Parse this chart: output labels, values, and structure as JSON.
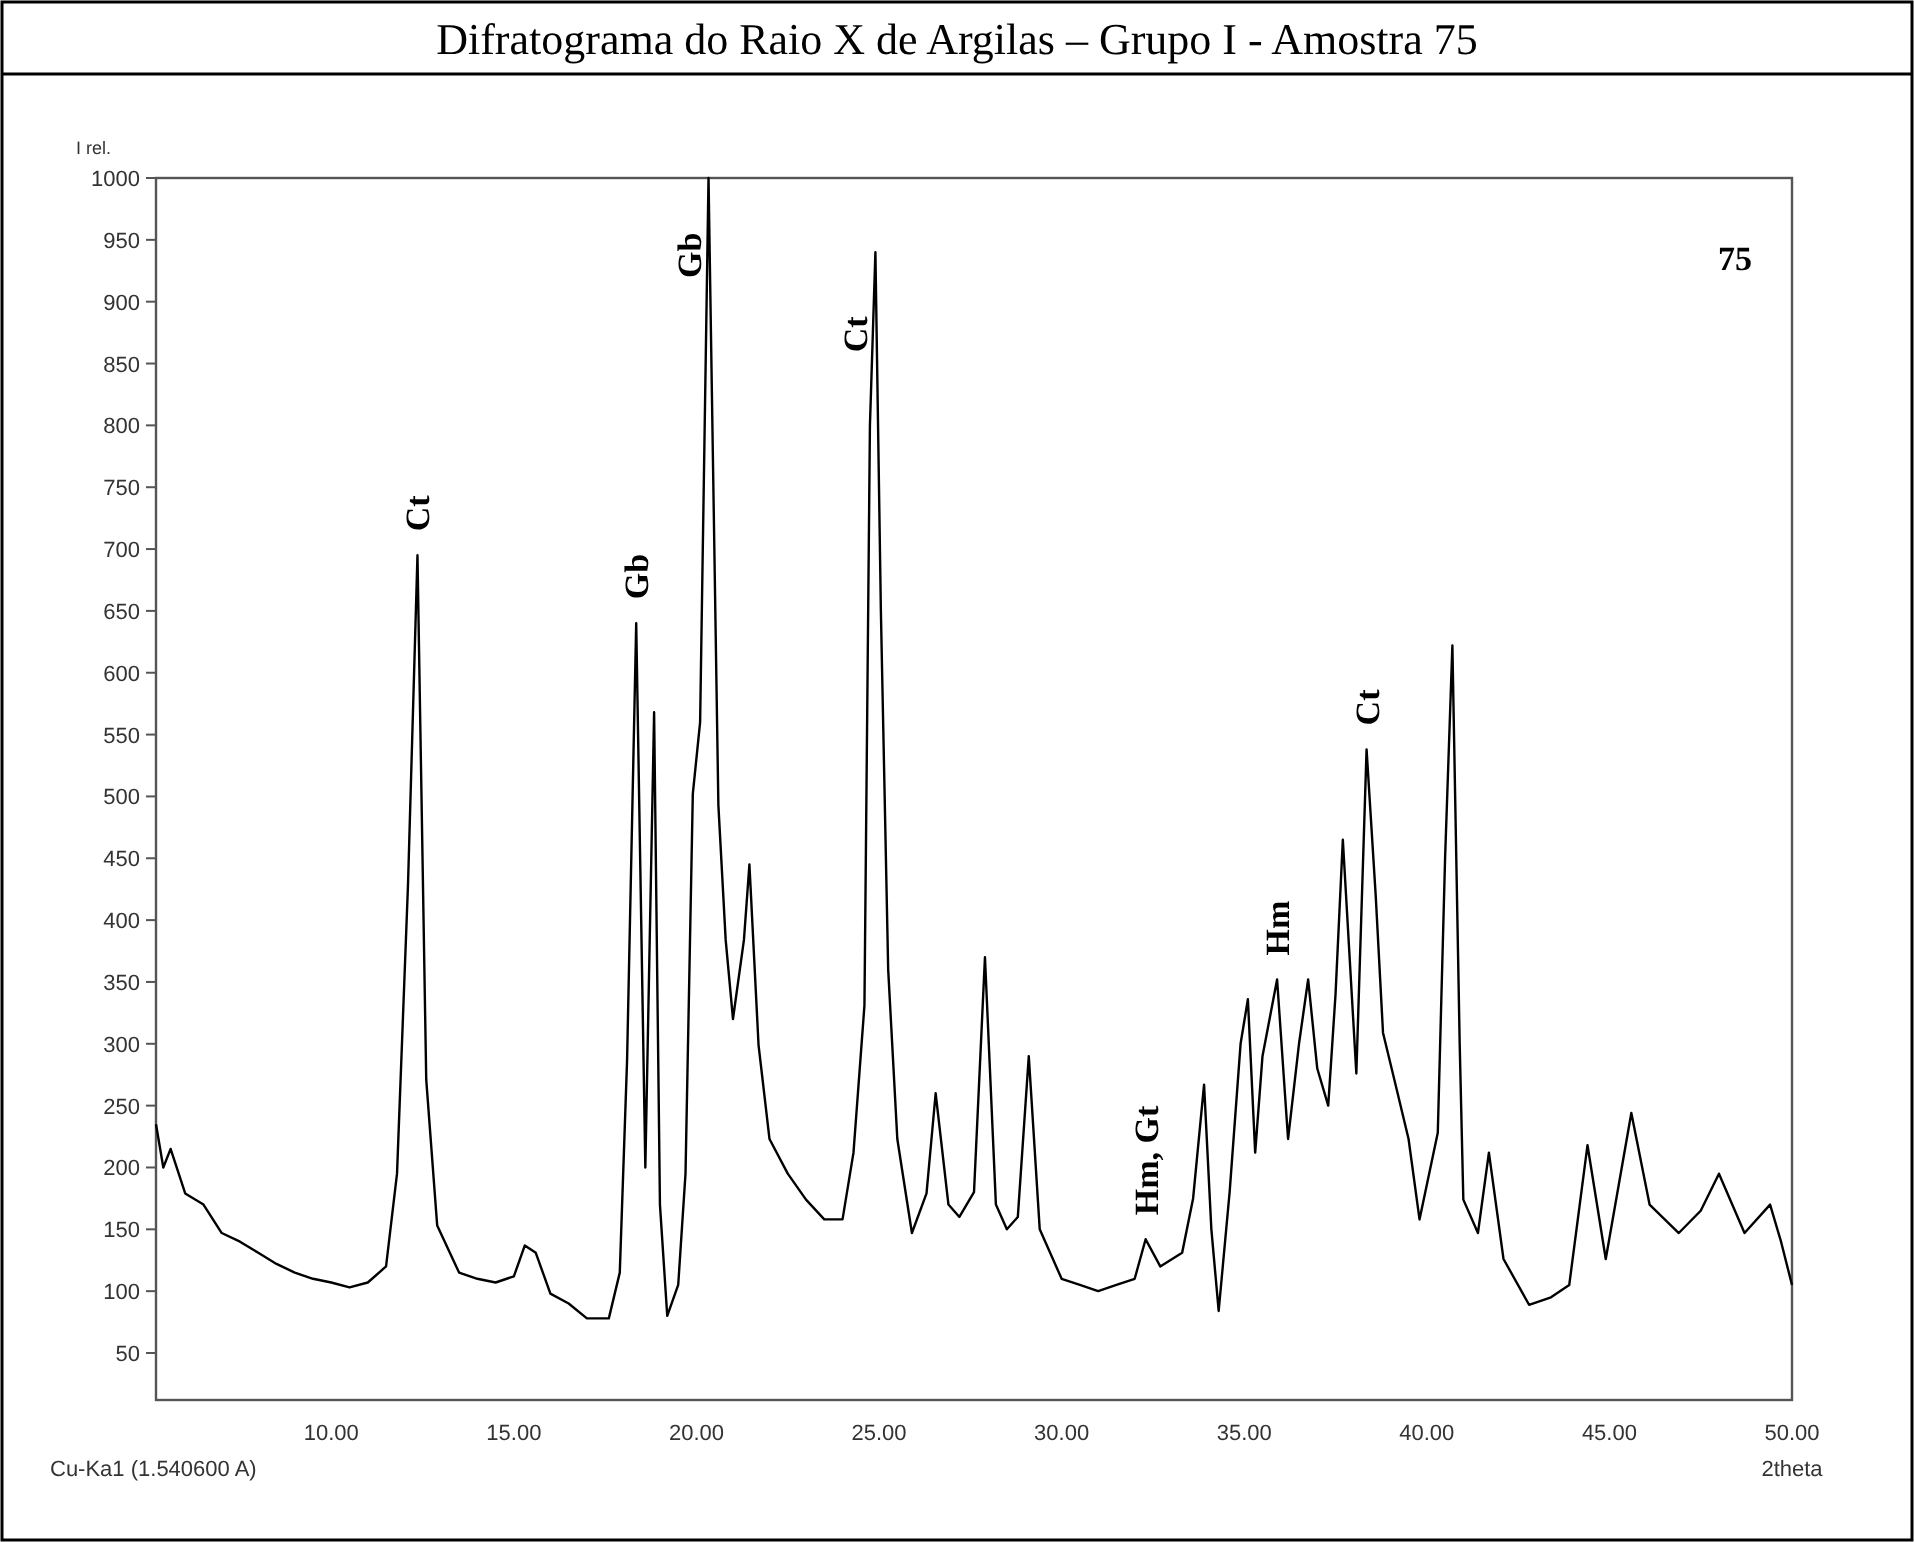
{
  "chart_data": {
    "type": "line",
    "title": "Difratograma do Raio X de Argilas – Grupo I - Amostra 75",
    "ylabel": "I rel.",
    "xlabel": "2theta",
    "grid": false,
    "marker": "none",
    "line_style": "solid",
    "xlim": [
      5.2,
      50
    ],
    "ylim": [
      12,
      1000
    ],
    "xticks": [
      {
        "value": 10,
        "label": "10.00"
      },
      {
        "value": 15,
        "label": "15.00"
      },
      {
        "value": 20,
        "label": "20.00"
      },
      {
        "value": 25,
        "label": "25.00"
      },
      {
        "value": 30,
        "label": "30.00"
      },
      {
        "value": 35,
        "label": "35.00"
      },
      {
        "value": 40,
        "label": "40.00"
      },
      {
        "value": 45,
        "label": "45.00"
      },
      {
        "value": 50,
        "label": "50.00"
      }
    ],
    "yticks": [
      50,
      100,
      150,
      200,
      250,
      300,
      350,
      400,
      450,
      500,
      550,
      600,
      650,
      700,
      750,
      800,
      850,
      900,
      950,
      1000
    ],
    "annotations": [
      "Cu-Ka1 (1.540600 A)",
      "75",
      {
        "text": "Ct",
        "x": 12.36,
        "y": 695
      },
      {
        "text": "Gb",
        "x": 18.35,
        "y": 640
      },
      {
        "text": "Gb",
        "x": 20.33,
        "y": 1000
      },
      {
        "text": "Ct",
        "x": 24.9,
        "y": 940
      },
      {
        "text": "Hm, Gt",
        "x": 32.3,
        "y": 142
      },
      {
        "text": "Hm",
        "x": 35.9,
        "y": 352
      },
      {
        "text": "Ct",
        "x": 38.35,
        "y": 538
      }
    ],
    "series": [
      {
        "color": "#000000",
        "x": [
          5.2,
          5.4,
          5.6,
          6.0,
          6.5,
          7.0,
          7.5,
          8.0,
          8.5,
          9.0,
          9.5,
          10.0,
          10.5,
          11.0,
          11.5,
          11.8,
          12.1,
          12.36,
          12.6,
          12.9,
          13.5,
          14.0,
          14.5,
          15.0,
          15.3,
          15.6,
          16.0,
          16.5,
          17.0,
          17.6,
          17.9,
          18.1,
          18.35,
          18.6,
          18.84,
          19.0,
          19.2,
          19.5,
          19.7,
          19.9,
          20.1,
          20.33,
          20.6,
          20.8,
          21.0,
          21.3,
          21.45,
          21.7,
          22.0,
          22.5,
          23.0,
          23.5,
          24.0,
          24.3,
          24.6,
          24.75,
          24.9,
          25.05,
          25.25,
          25.5,
          25.9,
          26.3,
          26.55,
          26.9,
          27.2,
          27.6,
          27.9,
          28.2,
          28.5,
          28.8,
          29.1,
          29.4,
          30.0,
          30.5,
          31.0,
          31.5,
          32.0,
          32.3,
          32.7,
          33.3,
          33.6,
          33.9,
          34.1,
          34.3,
          34.6,
          34.9,
          35.1,
          35.3,
          35.5,
          35.9,
          36.2,
          36.5,
          36.75,
          37.0,
          37.3,
          37.5,
          37.7,
          38.07,
          38.35,
          38.6,
          38.8,
          39.2,
          39.5,
          39.8,
          40.3,
          40.5,
          40.7,
          40.9,
          41.0,
          41.4,
          41.7,
          42.1,
          42.8,
          43.4,
          43.9,
          44.4,
          44.9,
          45.6,
          46.1,
          46.9,
          47.5,
          48.0,
          48.7,
          49.4,
          49.7,
          50.0
        ],
        "values": [
          235,
          200,
          215,
          179,
          170,
          147,
          140,
          131,
          122,
          115,
          110,
          107,
          103,
          107,
          120,
          195,
          428,
          695,
          271,
          153,
          115,
          110,
          107,
          112,
          137,
          131,
          98,
          90,
          78,
          78,
          115,
          287,
          640,
          200,
          568,
          170,
          80,
          105,
          195,
          502,
          560,
          1000,
          493,
          384,
          320,
          384,
          445,
          299,
          223,
          195,
          174,
          158,
          158,
          212,
          331,
          800,
          940,
          650,
          360,
          223,
          147,
          179,
          260,
          170,
          160,
          180,
          370,
          170,
          150,
          160,
          290,
          150,
          110,
          105,
          100,
          105,
          110,
          142,
          120,
          131,
          175,
          267,
          150,
          84,
          180,
          300,
          336,
          212,
          290,
          352,
          223,
          300,
          352,
          280,
          250,
          340,
          465,
          276,
          538,
          420,
          309,
          260,
          223,
          158,
          228,
          450,
          622,
          300,
          174,
          147,
          212,
          126,
          89,
          95,
          105,
          218,
          126,
          244,
          170,
          147,
          165,
          195,
          147,
          170,
          140,
          105
        ]
      }
    ]
  }
}
